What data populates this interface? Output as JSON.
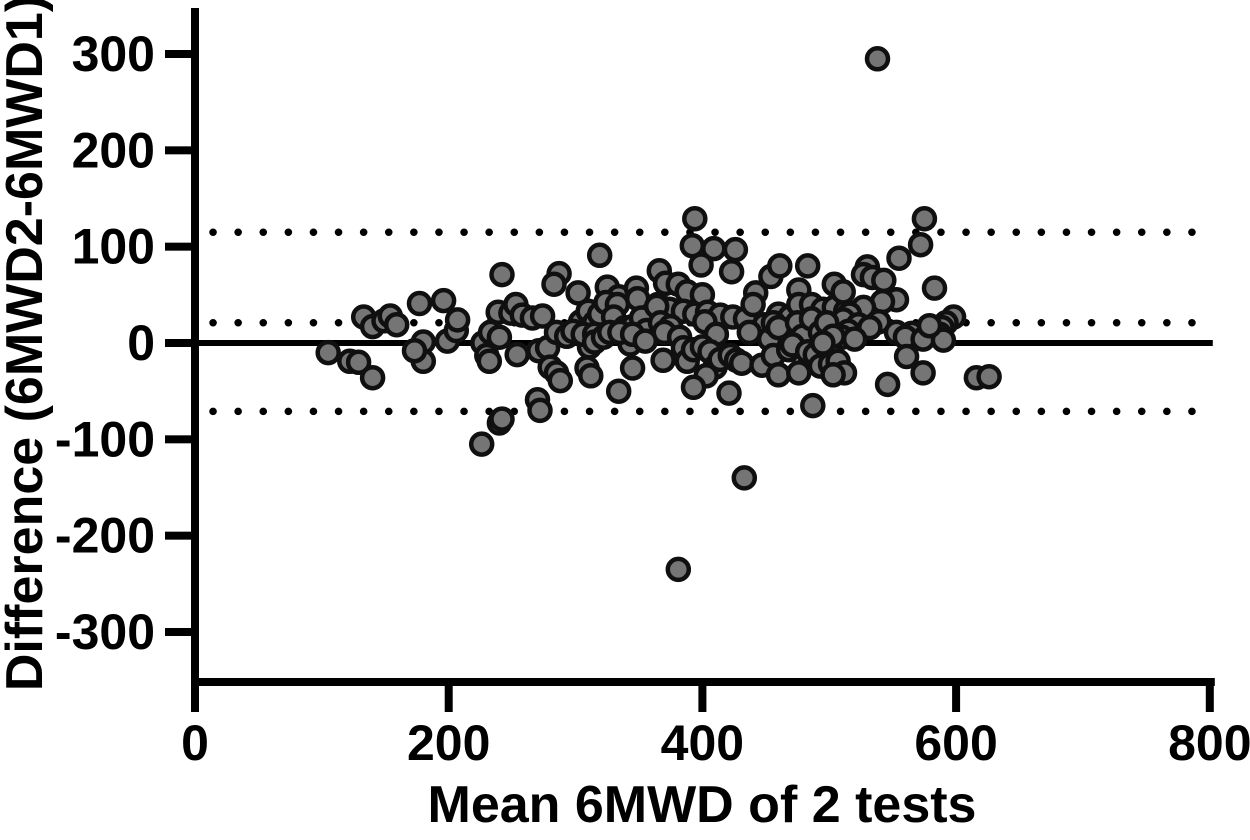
{
  "figure": {
    "type_description": "Bland-Altman agreement scatter plot",
    "background": "#ffffff"
  },
  "chart_data": {
    "type": "scatter",
    "title": "",
    "xlabel": "Mean 6MWD of 2 tests",
    "ylabel": "Difference (6MWD2-6MWD1)",
    "xlim": [
      0,
      800
    ],
    "ylim": [
      -350,
      360
    ],
    "x_ticks": [
      0,
      200,
      400,
      600,
      800
    ],
    "y_ticks": [
      300,
      200,
      100,
      0,
      -100,
      -200,
      -300
    ],
    "grid": false,
    "legend": false,
    "axis_color": "#000000",
    "zero_line": {
      "value": 0,
      "style": "solid",
      "color": "#000000"
    },
    "reference_lines": [
      {
        "name": "upper-limit-of-agreement",
        "value": 115,
        "style": "dotted",
        "color": "#000000"
      },
      {
        "name": "mean-bias",
        "value": 21,
        "style": "dotted",
        "color": "#000000"
      },
      {
        "name": "lower-limit-of-agreement",
        "value": -71,
        "style": "dotted",
        "color": "#000000"
      }
    ],
    "marker": {
      "shape": "circle",
      "fill": "#757575",
      "stroke": "#101010"
    },
    "points": [
      [
        105,
        -10
      ],
      [
        122,
        -19
      ],
      [
        129,
        -20
      ],
      [
        140,
        -36
      ],
      [
        133,
        27
      ],
      [
        140,
        17
      ],
      [
        149,
        23
      ],
      [
        154,
        28
      ],
      [
        159,
        19
      ],
      [
        177,
        41
      ],
      [
        196,
        44
      ],
      [
        180,
        1
      ],
      [
        180,
        -19
      ],
      [
        173,
        -8
      ],
      [
        199,
        2
      ],
      [
        206,
        13
      ],
      [
        207,
        24
      ],
      [
        227,
        0
      ],
      [
        230,
        -13
      ],
      [
        232,
        -19
      ],
      [
        226,
        -105
      ],
      [
        240,
        -83
      ],
      [
        242,
        -79
      ],
      [
        254,
        -12
      ],
      [
        271,
        -8
      ],
      [
        278,
        -5
      ],
      [
        280,
        -25
      ],
      [
        285,
        -31
      ],
      [
        288,
        -39
      ],
      [
        270,
        -59
      ],
      [
        272,
        -70
      ],
      [
        233,
        11
      ],
      [
        240,
        6
      ],
      [
        239,
        32
      ],
      [
        249,
        31
      ],
      [
        253,
        40
      ],
      [
        258,
        29
      ],
      [
        266,
        26
      ],
      [
        274,
        28
      ],
      [
        242,
        71
      ],
      [
        287,
        72
      ],
      [
        283,
        61
      ],
      [
        302,
        52
      ],
      [
        319,
        91
      ],
      [
        325,
        58
      ],
      [
        334,
        48
      ],
      [
        348,
        57
      ],
      [
        349,
        46
      ],
      [
        366,
        75
      ],
      [
        371,
        62
      ],
      [
        381,
        61
      ],
      [
        388,
        53
      ],
      [
        400,
        50
      ],
      [
        442,
        52
      ],
      [
        454,
        69
      ],
      [
        461,
        80
      ],
      [
        483,
        80
      ],
      [
        423,
        74
      ],
      [
        426,
        97
      ],
      [
        409,
        98
      ],
      [
        392,
        101
      ],
      [
        394,
        129
      ],
      [
        399,
        81
      ],
      [
        365,
        40
      ],
      [
        374,
        35
      ],
      [
        385,
        33
      ],
      [
        394,
        30
      ],
      [
        404,
        32
      ],
      [
        414,
        29
      ],
      [
        424,
        27
      ],
      [
        434,
        25
      ],
      [
        440,
        40
      ],
      [
        449,
        19
      ],
      [
        460,
        30
      ],
      [
        469,
        27
      ],
      [
        476,
        55
      ],
      [
        476,
        40
      ],
      [
        486,
        40
      ],
      [
        495,
        35
      ],
      [
        504,
        37
      ],
      [
        513,
        33
      ],
      [
        504,
        61
      ],
      [
        511,
        53
      ],
      [
        530,
        79
      ],
      [
        527,
        71
      ],
      [
        534,
        68
      ],
      [
        543,
        65
      ],
      [
        555,
        88
      ],
      [
        572,
        102
      ],
      [
        575,
        129
      ],
      [
        583,
        57
      ],
      [
        553,
        45
      ],
      [
        542,
        43
      ],
      [
        527,
        37
      ],
      [
        516,
        30
      ],
      [
        511,
        24
      ],
      [
        523,
        19
      ],
      [
        539,
        22
      ],
      [
        532,
        16
      ],
      [
        598,
        27
      ],
      [
        592,
        21
      ],
      [
        589,
        16
      ],
      [
        587,
        9
      ],
      [
        515,
        12
      ],
      [
        553,
        11
      ],
      [
        565,
        10
      ],
      [
        582,
        9
      ],
      [
        510,
        6
      ],
      [
        520,
        4
      ],
      [
        560,
        6
      ],
      [
        574,
        4
      ],
      [
        590,
        3
      ],
      [
        304,
        22
      ],
      [
        310,
        33
      ],
      [
        315,
        21
      ],
      [
        319,
        30
      ],
      [
        324,
        42
      ],
      [
        333,
        40
      ],
      [
        330,
        27
      ],
      [
        339,
        16
      ],
      [
        345,
        17
      ],
      [
        352,
        26
      ],
      [
        356,
        13
      ],
      [
        364,
        38
      ],
      [
        367,
        21
      ],
      [
        375,
        17
      ],
      [
        370,
        11
      ],
      [
        382,
        6
      ],
      [
        385,
        -5
      ],
      [
        343,
        -1
      ],
      [
        311,
        -4
      ],
      [
        309,
        -26
      ],
      [
        285,
        11
      ],
      [
        293,
        7
      ],
      [
        298,
        12
      ],
      [
        306,
        9
      ],
      [
        315,
        9
      ],
      [
        315,
        1
      ],
      [
        322,
        6
      ],
      [
        327,
        11
      ],
      [
        335,
        11
      ],
      [
        345,
        9
      ],
      [
        355,
        2
      ],
      [
        402,
        22
      ],
      [
        411,
        9
      ],
      [
        437,
        11
      ],
      [
        453,
        4
      ],
      [
        456,
        21
      ],
      [
        460,
        16
      ],
      [
        475,
        21
      ],
      [
        479,
        7
      ],
      [
        486,
        25
      ],
      [
        493,
        11
      ],
      [
        498,
        21
      ],
      [
        503,
        7
      ],
      [
        369,
        -18
      ],
      [
        388,
        -19
      ],
      [
        393,
        -7
      ],
      [
        400,
        -4
      ],
      [
        406,
        -9
      ],
      [
        410,
        -25
      ],
      [
        403,
        -34
      ],
      [
        393,
        -46
      ],
      [
        414,
        -17
      ],
      [
        422,
        -13
      ],
      [
        427,
        -18
      ],
      [
        431,
        -21
      ],
      [
        421,
        -52
      ],
      [
        447,
        -23
      ],
      [
        456,
        -13
      ],
      [
        460,
        -33
      ],
      [
        468,
        -7
      ],
      [
        471,
        -2
      ],
      [
        476,
        -31
      ],
      [
        483,
        -9
      ],
      [
        489,
        -12
      ],
      [
        493,
        -24
      ],
      [
        495,
        0
      ],
      [
        501,
        -22
      ],
      [
        507,
        -19
      ],
      [
        487,
        -65
      ],
      [
        512,
        -31
      ],
      [
        503,
        -33
      ],
      [
        546,
        -43
      ],
      [
        561,
        -14
      ],
      [
        574,
        -31
      ],
      [
        579,
        18
      ],
      [
        616,
        -36
      ],
      [
        626,
        -35
      ],
      [
        312,
        -34
      ],
      [
        334,
        -50
      ],
      [
        345,
        -26
      ],
      [
        433,
        -140
      ],
      [
        381,
        -235
      ],
      [
        538,
        295
      ]
    ]
  }
}
